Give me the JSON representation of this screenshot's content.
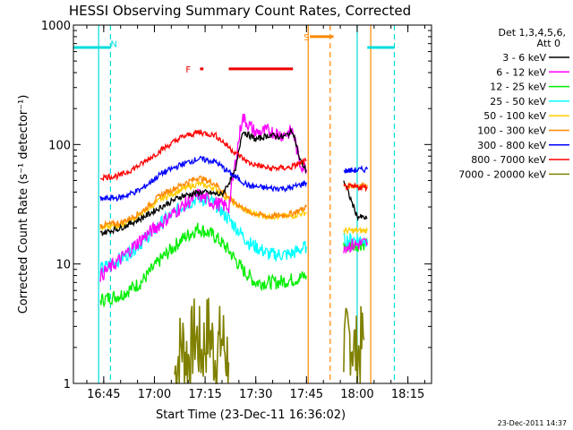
{
  "chart_data": {
    "type": "line",
    "title": "HESSI Observing Summary Count Rates, Corrected",
    "ylabel": "Corrected Count Rate (s⁻¹ detector⁻¹)",
    "xlabel": "Start Time (23-Dec-11 16:36:02)",
    "timestamp": "23-Dec-2011 14:37",
    "y_scale": "log",
    "ylim": [
      1,
      1000
    ],
    "xlim": [
      "16:36:02",
      "18:22:00"
    ],
    "y_ticks": [
      {
        "v": 1,
        "label": "1"
      },
      {
        "v": 10,
        "label": "10"
      },
      {
        "v": 100,
        "label": "100"
      },
      {
        "v": 1000,
        "label": "1000"
      }
    ],
    "x_ticks": [
      {
        "t": "16:45",
        "label": "16:45"
      },
      {
        "t": "17:00",
        "label": "17:00"
      },
      {
        "t": "17:15",
        "label": "17:15"
      },
      {
        "t": "17:30",
        "label": "17:30"
      },
      {
        "t": "17:45",
        "label": "17:45"
      },
      {
        "t": "18:00",
        "label": "18:00"
      },
      {
        "t": "18:15",
        "label": "18:15"
      }
    ],
    "legend": {
      "position": "right",
      "header": [
        "Det 1,3,4,5,6,",
        "Att 0"
      ]
    },
    "series": [
      {
        "name": "3 - 6 keV",
        "color": "#000000",
        "points": [
          [
            "16:44:00",
            18
          ],
          [
            "16:50:00",
            20
          ],
          [
            "16:56:00",
            24
          ],
          [
            "17:02:00",
            30
          ],
          [
            "17:08:00",
            37
          ],
          [
            "17:14:00",
            40
          ],
          [
            "17:20:00",
            38
          ],
          [
            "17:24:00",
            60
          ],
          [
            "17:26:00",
            130
          ],
          [
            "17:30:00",
            110
          ],
          [
            "17:34:00",
            120
          ],
          [
            "17:38:00",
            115
          ],
          [
            "17:41:00",
            130
          ],
          [
            "17:43:00",
            75
          ],
          [
            "17:45:00",
            60
          ],
          [
            "17:56:00",
            null
          ],
          [
            "17:56:00",
            50
          ],
          [
            "18:00:00",
            25
          ],
          [
            "18:03:00",
            24
          ]
        ]
      },
      {
        "name": "6 - 12 keV",
        "color": "#ff00ff",
        "points": [
          [
            "16:44:00",
            8
          ],
          [
            "16:50:00",
            11
          ],
          [
            "16:56:00",
            16
          ],
          [
            "17:02:00",
            22
          ],
          [
            "17:08:00",
            30
          ],
          [
            "17:13:00",
            38
          ],
          [
            "17:17:00",
            33
          ],
          [
            "17:22:00",
            30
          ],
          [
            "17:26:00",
            170
          ],
          [
            "17:30:00",
            125
          ],
          [
            "17:34:00",
            130
          ],
          [
            "17:38:00",
            120
          ],
          [
            "17:41:00",
            130
          ],
          [
            "17:43:00",
            70
          ],
          [
            "17:45:00",
            62
          ],
          [
            "17:56:00",
            null
          ],
          [
            "17:56:00",
            14
          ],
          [
            "18:03:00",
            15
          ]
        ]
      },
      {
        "name": "12 - 25 keV",
        "color": "#00ee00",
        "points": [
          [
            "16:44:00",
            5
          ],
          [
            "16:50:00",
            5.5
          ],
          [
            "16:56:00",
            7
          ],
          [
            "17:02:00",
            11
          ],
          [
            "17:08:00",
            16
          ],
          [
            "17:13:00",
            20
          ],
          [
            "17:18:00",
            17
          ],
          [
            "17:22:00",
            13
          ],
          [
            "17:26:00",
            9
          ],
          [
            "17:30:00",
            7
          ],
          [
            "17:36:00",
            7
          ],
          [
            "17:42:00",
            7.5
          ],
          [
            "17:45:00",
            8
          ],
          [
            "17:56:00",
            null
          ],
          [
            "17:56:00",
            14
          ],
          [
            "18:03:00",
            15
          ]
        ]
      },
      {
        "name": "25 - 50 keV",
        "color": "#00ffff",
        "points": [
          [
            "16:44:00",
            9
          ],
          [
            "16:50:00",
            11
          ],
          [
            "16:56:00",
            15
          ],
          [
            "17:02:00",
            22
          ],
          [
            "17:08:00",
            30
          ],
          [
            "17:13:00",
            36
          ],
          [
            "17:18:00",
            32
          ],
          [
            "17:23:00",
            22
          ],
          [
            "17:28:00",
            15
          ],
          [
            "17:34:00",
            12
          ],
          [
            "17:40:00",
            12
          ],
          [
            "17:45:00",
            14
          ],
          [
            "17:56:00",
            null
          ],
          [
            "17:56:00",
            16
          ],
          [
            "18:03:00",
            16
          ]
        ]
      },
      {
        "name": "50 - 100 keV",
        "color": "#ffcc00",
        "points": [
          [
            "16:44:00",
            20
          ],
          [
            "16:50:00",
            21
          ],
          [
            "16:56:00",
            26
          ],
          [
            "17:02:00",
            35
          ],
          [
            "17:08:00",
            42
          ],
          [
            "17:13:00",
            47
          ],
          [
            "17:18:00",
            43
          ],
          [
            "17:23:00",
            33
          ],
          [
            "17:28:00",
            27
          ],
          [
            "17:34:00",
            25
          ],
          [
            "17:40:00",
            25
          ],
          [
            "17:45:00",
            27
          ],
          [
            "17:56:00",
            null
          ],
          [
            "17:56:00",
            19
          ],
          [
            "18:03:00",
            19
          ]
        ]
      },
      {
        "name": "100 - 300 keV",
        "color": "#ff8800",
        "points": [
          [
            "16:44:00",
            21
          ],
          [
            "16:50:00",
            22
          ],
          [
            "16:56:00",
            27
          ],
          [
            "17:02:00",
            38
          ],
          [
            "17:08:00",
            46
          ],
          [
            "17:13:00",
            53
          ],
          [
            "17:18:00",
            47
          ],
          [
            "17:23:00",
            34
          ],
          [
            "17:28:00",
            27
          ],
          [
            "17:34:00",
            25
          ],
          [
            "17:40:00",
            26
          ],
          [
            "17:45:00",
            30
          ],
          [
            "17:56:00",
            null
          ],
          [
            "17:56:00",
            45
          ],
          [
            "18:03:00",
            46
          ]
        ]
      },
      {
        "name": "300 - 800 keV",
        "color": "#0000ff",
        "points": [
          [
            "16:44:00",
            35
          ],
          [
            "16:50:00",
            36
          ],
          [
            "16:56:00",
            42
          ],
          [
            "17:02:00",
            57
          ],
          [
            "17:08:00",
            68
          ],
          [
            "17:13:00",
            76
          ],
          [
            "17:18:00",
            72
          ],
          [
            "17:23:00",
            56
          ],
          [
            "17:28:00",
            45
          ],
          [
            "17:34:00",
            43
          ],
          [
            "17:40:00",
            43
          ],
          [
            "17:45:00",
            48
          ],
          [
            "17:56:00",
            null
          ],
          [
            "17:56:00",
            60
          ],
          [
            "18:03:00",
            62
          ]
        ]
      },
      {
        "name": "800 - 7000 keV",
        "color": "#ff0000",
        "points": [
          [
            "16:44:00",
            53
          ],
          [
            "16:50:00",
            55
          ],
          [
            "16:56:00",
            68
          ],
          [
            "17:02:00",
            90
          ],
          [
            "17:08:00",
            115
          ],
          [
            "17:13:00",
            127
          ],
          [
            "17:18:00",
            120
          ],
          [
            "17:23:00",
            90
          ],
          [
            "17:28:00",
            70
          ],
          [
            "17:34:00",
            63
          ],
          [
            "17:40:00",
            64
          ],
          [
            "17:45:00",
            73
          ],
          [
            "17:56:00",
            null
          ],
          [
            "17:56:00",
            44
          ],
          [
            "18:03:00",
            44
          ]
        ]
      },
      {
        "name": "7000 - 20000 keV",
        "color": "#808000",
        "points": [
          [
            "17:06:00",
            1.2
          ],
          [
            "17:08:00",
            2.2
          ],
          [
            "17:10:00",
            1.6
          ],
          [
            "17:12:00",
            2.6
          ],
          [
            "17:14:00",
            1.8
          ],
          [
            "17:16:00",
            2.8
          ],
          [
            "17:18:00",
            1.7
          ],
          [
            "17:20:00",
            2.4
          ],
          [
            "17:22:00",
            1.5
          ],
          [
            "17:56:00",
            null
          ],
          [
            "17:56:00",
            1.8
          ],
          [
            "17:58:00",
            2.5
          ],
          [
            "18:00:00",
            1.7
          ],
          [
            "18:02:00",
            2.3
          ]
        ]
      }
    ],
    "annotations": [
      {
        "label": "N",
        "type": "flag",
        "color": "#00dddd",
        "segments": [
          [
            "16:36:02",
            "16:47:00"
          ],
          [
            "18:03:00",
            "18:11:00"
          ]
        ],
        "level": 650,
        "label_at": "16:48:00",
        "label_level": 700
      },
      {
        "label": "F",
        "type": "flag",
        "color": "#ee0000",
        "segments": [
          [
            "17:13:30",
            "17:14:30"
          ],
          [
            "17:22:00",
            "17:41:00"
          ]
        ],
        "level": 430,
        "label_at": "17:10:00",
        "label_level": 430
      },
      {
        "label": "S",
        "type": "flag",
        "color": "#ff8800",
        "segments": [
          [
            "17:46:00",
            "17:53:00"
          ]
        ],
        "level": 800,
        "label_at": "17:45:00",
        "label_level": 800
      }
    ],
    "vlines": [
      {
        "t": "16:43:30",
        "color": "#00dddd",
        "style": "solid"
      },
      {
        "t": "16:47:00",
        "color": "#00dddd",
        "style": "dashed"
      },
      {
        "t": "17:45:30",
        "color": "#ff8800",
        "style": "solid"
      },
      {
        "t": "17:52:00",
        "color": "#ff8800",
        "style": "dashed"
      },
      {
        "t": "18:00:00",
        "color": "#00dddd",
        "style": "solid"
      },
      {
        "t": "18:04:00",
        "color": "#ff8800",
        "style": "solid"
      },
      {
        "t": "18:11:00",
        "color": "#00dddd",
        "style": "dashed"
      }
    ]
  }
}
